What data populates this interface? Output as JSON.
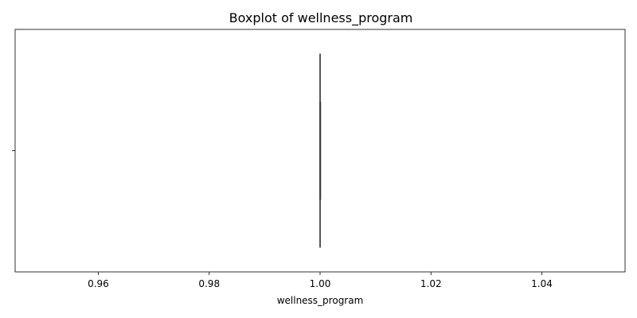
{
  "chart_data": {
    "type": "boxplot",
    "orientation": "horizontal",
    "title": "Boxplot of wellness_program",
    "xlabel": "wellness_program",
    "ylabel": "",
    "xlim": [
      0.945,
      1.055
    ],
    "xticks": [
      0.96,
      0.98,
      1.0,
      1.02,
      1.04
    ],
    "xtick_labels": [
      "0.96",
      "0.98",
      "1.00",
      "1.02",
      "1.04"
    ],
    "yticks": [
      ""
    ],
    "grid": false,
    "legend": "none",
    "series": [
      {
        "min": 1.0,
        "q1": 1.0,
        "median": 1.0,
        "q3": 1.0,
        "max": 1.0
      }
    ],
    "colors": {
      "box_line": "#3f3f3f",
      "axes": "#000000"
    }
  }
}
